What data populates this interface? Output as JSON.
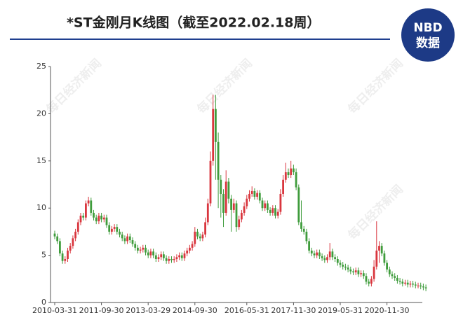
{
  "chart_data": {
    "type": "candlestick",
    "title": "*ST金刚月K线图（截至2022.02.18周）",
    "logo": {
      "top": "NBD",
      "bottom": "数据"
    },
    "watermark": "每日经济新闻",
    "up_color": "#d9363e",
    "down_color": "#3f9c3c",
    "ylim": [
      0,
      25
    ],
    "yticks": [
      0,
      5,
      10,
      15,
      20,
      25
    ],
    "grid": false,
    "categories": [
      "2010-03-31",
      null,
      null,
      null,
      null,
      null,
      null,
      null,
      null,
      null,
      null,
      null,
      null,
      null,
      null,
      null,
      null,
      null,
      "2011-09-30",
      null,
      null,
      null,
      null,
      null,
      null,
      null,
      null,
      null,
      null,
      null,
      null,
      null,
      null,
      null,
      null,
      null,
      "2013-03-29",
      null,
      null,
      null,
      null,
      null,
      null,
      null,
      null,
      null,
      null,
      null,
      null,
      null,
      null,
      null,
      null,
      null,
      "2014-09-30",
      null,
      null,
      null,
      null,
      null,
      null,
      null,
      null,
      null,
      null,
      null,
      null,
      null,
      null,
      null,
      null,
      null,
      null,
      null,
      "2016-05-31",
      null,
      null,
      null,
      null,
      null,
      null,
      null,
      null,
      null,
      null,
      null,
      null,
      null,
      null,
      null,
      null,
      null,
      "2017-11-30",
      null,
      null,
      null,
      null,
      null,
      null,
      null,
      null,
      null,
      null,
      null,
      null,
      null,
      null,
      null,
      null,
      null,
      "2019-05-31",
      null,
      null,
      null,
      null,
      null,
      null,
      null,
      null,
      null,
      null,
      null,
      null,
      null,
      null,
      null,
      null,
      null,
      "2020-11-30",
      null,
      null,
      null,
      null,
      null,
      null,
      null,
      null,
      null,
      null,
      null,
      null,
      null,
      null,
      null
    ],
    "ohlc": [
      [
        7.3,
        7.6,
        6.7,
        7.0
      ],
      [
        7.0,
        7.3,
        6.2,
        6.5
      ],
      [
        6.5,
        6.8,
        4.9,
        5.2
      ],
      [
        5.2,
        5.5,
        4.1,
        4.4
      ],
      [
        4.4,
        4.9,
        4.1,
        4.6
      ],
      [
        4.6,
        5.8,
        4.3,
        5.5
      ],
      [
        5.5,
        6.3,
        5.2,
        6.0
      ],
      [
        6.0,
        7.1,
        5.7,
        6.8
      ],
      [
        6.8,
        7.8,
        6.5,
        7.5
      ],
      [
        7.5,
        8.8,
        7.2,
        8.5
      ],
      [
        8.5,
        9.5,
        8.2,
        9.2
      ],
      [
        9.2,
        9.5,
        8.7,
        9.0
      ],
      [
        9.0,
        10.8,
        8.7,
        10.5
      ],
      [
        10.5,
        11.2,
        10.2,
        10.8
      ],
      [
        10.8,
        11.1,
        9.2,
        9.5
      ],
      [
        9.5,
        9.8,
        8.7,
        9.0
      ],
      [
        9.0,
        9.3,
        8.3,
        8.6
      ],
      [
        8.6,
        9.5,
        8.3,
        9.2
      ],
      [
        9.2,
        9.5,
        8.5,
        8.8
      ],
      [
        8.8,
        9.3,
        8.5,
        9.0
      ],
      [
        9.0,
        9.3,
        7.9,
        8.2
      ],
      [
        8.2,
        8.5,
        7.2,
        7.5
      ],
      [
        7.5,
        8.1,
        7.2,
        7.8
      ],
      [
        7.8,
        8.3,
        7.5,
        8.0
      ],
      [
        8.0,
        8.3,
        7.2,
        7.5
      ],
      [
        7.5,
        7.8,
        6.9,
        7.2
      ],
      [
        7.2,
        7.5,
        6.5,
        6.8
      ],
      [
        6.8,
        7.1,
        6.2,
        6.5
      ],
      [
        6.5,
        7.3,
        6.2,
        7.0
      ],
      [
        7.0,
        7.3,
        6.3,
        6.6
      ],
      [
        6.6,
        6.9,
        5.9,
        6.2
      ],
      [
        6.2,
        6.5,
        5.5,
        5.8
      ],
      [
        5.8,
        6.1,
        5.2,
        5.5
      ],
      [
        5.5,
        5.9,
        5.2,
        5.6
      ],
      [
        5.6,
        6.1,
        5.3,
        5.8
      ],
      [
        5.8,
        6.1,
        5.0,
        5.3
      ],
      [
        5.3,
        5.6,
        4.7,
        5.0
      ],
      [
        5.0,
        5.7,
        4.7,
        5.4
      ],
      [
        5.4,
        5.7,
        4.7,
        5.0
      ],
      [
        5.0,
        5.3,
        4.3,
        4.6
      ],
      [
        4.6,
        5.1,
        4.3,
        4.8
      ],
      [
        4.8,
        5.4,
        4.5,
        5.1
      ],
      [
        5.1,
        5.4,
        4.4,
        4.7
      ],
      [
        4.7,
        5.0,
        4.1,
        4.4
      ],
      [
        4.4,
        4.9,
        4.1,
        4.6
      ],
      [
        4.6,
        4.9,
        4.2,
        4.5
      ],
      [
        4.5,
        4.9,
        4.2,
        4.6
      ],
      [
        4.6,
        5.1,
        4.3,
        4.8
      ],
      [
        4.8,
        5.3,
        4.5,
        5.0
      ],
      [
        5.0,
        5.3,
        4.4,
        4.7
      ],
      [
        4.7,
        5.5,
        4.4,
        5.2
      ],
      [
        5.2,
        5.8,
        4.9,
        5.5
      ],
      [
        5.5,
        6.1,
        5.2,
        5.8
      ],
      [
        5.8,
        6.5,
        5.5,
        6.2
      ],
      [
        6.2,
        8.0,
        5.9,
        7.5
      ],
      [
        7.5,
        7.8,
        6.7,
        7.0
      ],
      [
        7.0,
        7.3,
        6.5,
        6.8
      ],
      [
        6.8,
        7.5,
        6.5,
        7.2
      ],
      [
        7.2,
        9.0,
        6.9,
        8.5
      ],
      [
        8.5,
        11.0,
        8.2,
        10.5
      ],
      [
        10.5,
        16.0,
        10.2,
        15.0
      ],
      [
        15.0,
        22.0,
        14.5,
        20.5
      ],
      [
        20.5,
        22.0,
        13.0,
        17.0
      ],
      [
        17.0,
        18.0,
        10.0,
        13.0
      ],
      [
        13.0,
        13.5,
        9.0,
        11.5
      ],
      [
        11.5,
        12.0,
        8.0,
        9.5
      ],
      [
        9.5,
        14.0,
        9.2,
        12.8
      ],
      [
        12.8,
        13.2,
        10.5,
        11.0
      ],
      [
        11.0,
        11.4,
        7.5,
        9.8
      ],
      [
        9.8,
        11.0,
        9.5,
        10.5
      ],
      [
        10.5,
        10.8,
        7.5,
        8.0
      ],
      [
        8.0,
        9.2,
        7.7,
        8.8
      ],
      [
        8.8,
        9.8,
        8.5,
        9.5
      ],
      [
        9.5,
        10.6,
        9.2,
        10.2
      ],
      [
        10.2,
        11.4,
        9.9,
        11.0
      ],
      [
        11.0,
        11.9,
        10.7,
        11.5
      ],
      [
        11.5,
        12.3,
        11.2,
        11.8
      ],
      [
        11.8,
        12.1,
        10.9,
        11.2
      ],
      [
        11.2,
        11.9,
        10.9,
        11.6
      ],
      [
        11.6,
        11.9,
        10.5,
        10.8
      ],
      [
        10.8,
        11.1,
        9.7,
        10.0
      ],
      [
        10.0,
        10.8,
        9.7,
        10.5
      ],
      [
        10.5,
        10.8,
        9.5,
        9.8
      ],
      [
        9.8,
        10.1,
        9.2,
        9.5
      ],
      [
        9.5,
        10.3,
        9.2,
        10.0
      ],
      [
        10.0,
        10.3,
        8.9,
        9.2
      ],
      [
        9.2,
        9.9,
        8.9,
        9.6
      ],
      [
        9.6,
        12.0,
        9.3,
        11.5
      ],
      [
        11.5,
        13.5,
        11.2,
        13.0
      ],
      [
        13.0,
        14.8,
        12.7,
        13.8
      ],
      [
        13.8,
        14.2,
        13.2,
        13.5
      ],
      [
        13.5,
        15.0,
        13.2,
        14.2
      ],
      [
        14.2,
        14.6,
        13.5,
        13.8
      ],
      [
        13.8,
        14.2,
        11.9,
        12.2
      ],
      [
        12.2,
        12.5,
        8.2,
        8.5
      ],
      [
        8.5,
        10.8,
        7.5,
        7.8
      ],
      [
        7.8,
        8.1,
        7.2,
        7.5
      ],
      [
        7.5,
        7.8,
        6.2,
        6.5
      ],
      [
        6.5,
        6.8,
        5.2,
        5.5
      ],
      [
        5.5,
        5.8,
        4.9,
        5.2
      ],
      [
        5.2,
        5.5,
        4.7,
        5.0
      ],
      [
        5.0,
        5.6,
        4.7,
        5.3
      ],
      [
        5.3,
        5.6,
        4.6,
        4.9
      ],
      [
        4.9,
        5.2,
        4.4,
        4.7
      ],
      [
        4.7,
        5.0,
        4.2,
        4.5
      ],
      [
        4.5,
        5.1,
        4.2,
        4.8
      ],
      [
        4.8,
        6.3,
        4.5,
        5.4
      ],
      [
        5.4,
        5.7,
        4.5,
        4.8
      ],
      [
        4.8,
        5.1,
        4.3,
        4.6
      ],
      [
        4.6,
        4.9,
        3.9,
        4.2
      ],
      [
        4.2,
        4.5,
        3.7,
        4.0
      ],
      [
        4.0,
        4.3,
        3.5,
        3.8
      ],
      [
        3.8,
        4.1,
        3.4,
        3.7
      ],
      [
        3.7,
        4.0,
        3.2,
        3.5
      ],
      [
        3.5,
        3.8,
        3.0,
        3.3
      ],
      [
        3.3,
        3.6,
        2.9,
        3.2
      ],
      [
        3.2,
        3.7,
        2.9,
        3.4
      ],
      [
        3.4,
        3.7,
        2.7,
        3.0
      ],
      [
        3.0,
        3.4,
        2.7,
        3.1
      ],
      [
        3.1,
        3.4,
        2.5,
        2.8
      ],
      [
        2.8,
        3.1,
        1.9,
        2.2
      ],
      [
        2.2,
        2.5,
        1.7,
        2.0
      ],
      [
        2.0,
        2.8,
        1.7,
        2.5
      ],
      [
        2.5,
        4.5,
        2.2,
        3.8
      ],
      [
        3.8,
        8.6,
        3.5,
        5.5
      ],
      [
        5.5,
        6.5,
        4.2,
        6.0
      ],
      [
        6.0,
        6.3,
        4.9,
        5.2
      ],
      [
        5.2,
        5.5,
        3.9,
        4.2
      ],
      [
        4.2,
        4.5,
        3.2,
        3.5
      ],
      [
        3.5,
        3.8,
        2.7,
        3.0
      ],
      [
        3.0,
        3.3,
        2.5,
        2.8
      ],
      [
        2.8,
        3.1,
        2.3,
        2.6
      ],
      [
        2.6,
        2.9,
        2.0,
        2.3
      ],
      [
        2.3,
        2.6,
        1.9,
        2.2
      ],
      [
        2.2,
        2.5,
        1.7,
        2.0
      ],
      [
        2.0,
        2.4,
        1.8,
        2.1
      ],
      [
        2.1,
        2.4,
        1.6,
        1.9
      ],
      [
        1.9,
        2.3,
        1.6,
        2.0
      ],
      [
        2.0,
        2.3,
        1.6,
        1.9
      ],
      [
        1.9,
        2.2,
        1.5,
        1.8
      ],
      [
        1.8,
        2.1,
        1.5,
        1.8
      ],
      [
        1.8,
        2.1,
        1.4,
        1.7
      ],
      [
        1.7,
        2.0,
        1.3,
        1.6
      ],
      [
        1.6,
        1.9,
        1.2,
        1.5
      ]
    ]
  }
}
